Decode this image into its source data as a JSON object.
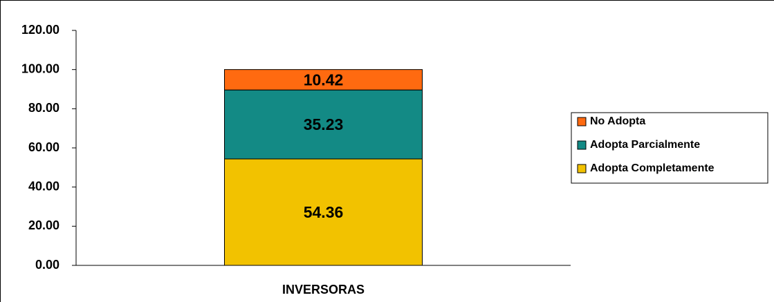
{
  "chart_data": {
    "type": "stacked_bar",
    "categories": [
      "INVERSORAS"
    ],
    "series": [
      {
        "name": "Adopta Completamente",
        "color": "#f2c200",
        "values": [
          54.36
        ]
      },
      {
        "name": "Adopta Parcialmente",
        "color": "#138a85",
        "values": [
          35.23
        ]
      },
      {
        "name": "No Adopta",
        "color": "#ff6a10",
        "values": [
          10.42
        ]
      }
    ],
    "ylim": [
      0,
      120
    ],
    "yticks": [
      {
        "value": 0,
        "label": "0.00"
      },
      {
        "value": 20,
        "label": "20.00"
      },
      {
        "value": 40,
        "label": "40.00"
      },
      {
        "value": 60,
        "label": "60.00"
      },
      {
        "value": 80,
        "label": "80.00"
      },
      {
        "value": 100,
        "label": "100.00"
      },
      {
        "value": 120,
        "label": "120.00"
      }
    ],
    "legend": "right"
  }
}
